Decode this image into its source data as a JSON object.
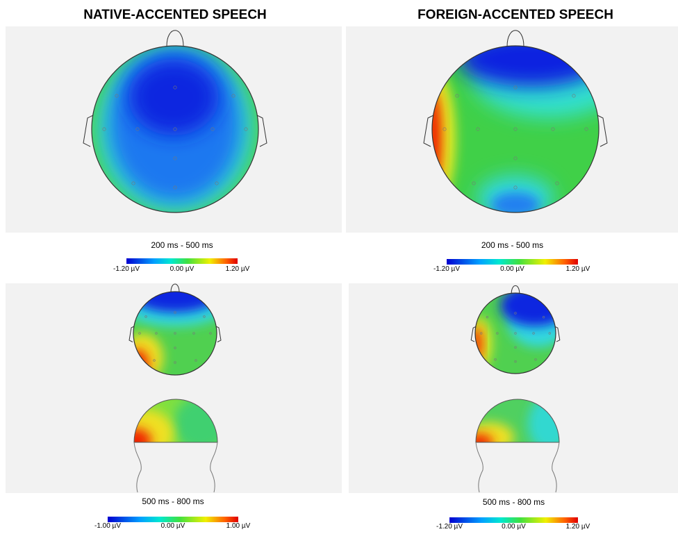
{
  "columns": [
    {
      "title": "NATIVE-ACCENTED SPEECH",
      "panels": [
        {
          "time_window": "200 ms - 500 ms",
          "scale": [
            "-1.20 µV",
            "0.00 µV",
            "1.20 µV"
          ]
        },
        {
          "time_window": "500 ms - 800 ms",
          "scale": [
            "-1.00 µV",
            "0.00 µV",
            "1.00 µV"
          ]
        }
      ]
    },
    {
      "title": "FOREIGN-ACCENTED SPEECH",
      "panels": [
        {
          "time_window": "200 ms - 500 ms",
          "scale": [
            "-1.20 µV",
            "0.00 µV",
            "1.20 µV"
          ]
        },
        {
          "time_window": "500 ms - 800 ms",
          "scale": [
            "-1.20 µV",
            "0.00 µV",
            "1.20 µV"
          ]
        }
      ]
    }
  ]
}
